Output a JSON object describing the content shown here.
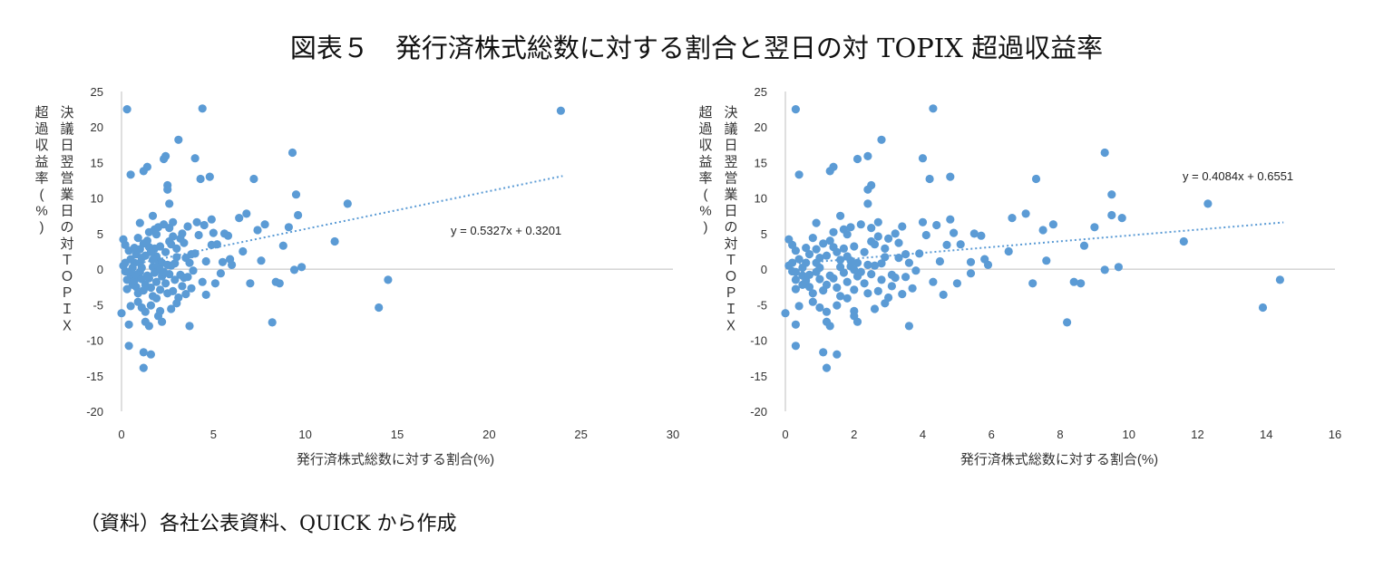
{
  "figure_title": "図表５　発行済株式総数に対する割合と翌日の対 TOPIX 超過収益率",
  "source_note": "（資料）各社公表資料、QUICK から作成",
  "colors": {
    "points": "#5b9bd5",
    "axis": "#bfbfbf",
    "trend": "#5b9bd5",
    "text": "#333333"
  },
  "chart_data": [
    {
      "type": "scatter",
      "title": "",
      "xlabel": "発行済株式総数に対する割合(%)",
      "ylabel_lines": [
        "決議日翌営業日の対ＴＯＰＩＸ",
        "超過収益率(%)"
      ],
      "xlim": [
        0,
        30
      ],
      "ylim": [
        -20,
        25
      ],
      "xticks": [
        0,
        5,
        10,
        15,
        20,
        25,
        30
      ],
      "yticks": [
        -20,
        -15,
        -10,
        -5,
        0,
        5,
        10,
        15,
        20,
        25
      ],
      "grid": false,
      "trendline": {
        "slope": 0.5327,
        "intercept": 0.3201,
        "x_range": [
          0,
          24
        ],
        "label": "y = 0.5327x + 0.3201"
      },
      "points": [
        [
          0.1,
          4.2
        ],
        [
          0.3,
          22.5
        ],
        [
          0.5,
          13.3
        ],
        [
          0.2,
          3.4
        ],
        [
          0.4,
          2.6
        ],
        [
          0.1,
          0.5
        ],
        [
          0.2,
          -0.3
        ],
        [
          0.3,
          -1.5
        ],
        [
          0.0,
          -6.2
        ],
        [
          0.4,
          -7.8
        ],
        [
          0.4,
          -10.8
        ],
        [
          0.6,
          -0.9
        ],
        [
          0.7,
          0.9
        ],
        [
          0.8,
          -2.5
        ],
        [
          0.9,
          4.4
        ],
        [
          1.0,
          6.5
        ],
        [
          1.1,
          -5.4
        ],
        [
          1.2,
          -11.7
        ],
        [
          1.2,
          -13.9
        ],
        [
          1.3,
          -6.0
        ],
        [
          1.4,
          14.4
        ],
        [
          1.2,
          13.8
        ],
        [
          1.5,
          -8.0
        ],
        [
          1.6,
          -12.0
        ],
        [
          1.7,
          7.5
        ],
        [
          1.8,
          2.9
        ],
        [
          1.9,
          -1.8
        ],
        [
          2.0,
          0.4
        ],
        [
          2.1,
          -5.9
        ],
        [
          2.2,
          -7.4
        ],
        [
          2.3,
          15.5
        ],
        [
          2.4,
          15.9
        ],
        [
          2.5,
          11.8
        ],
        [
          2.5,
          11.2
        ],
        [
          2.6,
          9.2
        ],
        [
          2.6,
          5.8
        ],
        [
          2.7,
          3.5
        ],
        [
          2.8,
          -3.1
        ],
        [
          3.0,
          -4.8
        ],
        [
          3.1,
          18.2
        ],
        [
          3.2,
          4.3
        ],
        [
          3.4,
          -1.2
        ],
        [
          3.6,
          6.0
        ],
        [
          3.7,
          -8.0
        ],
        [
          3.8,
          2.1
        ],
        [
          4.0,
          15.6
        ],
        [
          4.1,
          6.6
        ],
        [
          4.3,
          12.7
        ],
        [
          4.4,
          22.6
        ],
        [
          4.5,
          6.2
        ],
        [
          4.6,
          -3.6
        ],
        [
          4.8,
          13.0
        ],
        [
          4.9,
          3.4
        ],
        [
          5.0,
          5.1
        ],
        [
          5.2,
          3.5
        ],
        [
          5.4,
          -0.6
        ],
        [
          5.6,
          5.0
        ],
        [
          5.9,
          1.4
        ],
        [
          6.0,
          0.6
        ],
        [
          6.4,
          7.2
        ],
        [
          6.8,
          7.8
        ],
        [
          7.0,
          -2.0
        ],
        [
          7.2,
          12.7
        ],
        [
          7.4,
          5.5
        ],
        [
          7.6,
          1.2
        ],
        [
          7.8,
          6.3
        ],
        [
          8.2,
          -7.5
        ],
        [
          8.4,
          -1.8
        ],
        [
          8.6,
          -2.0
        ],
        [
          8.8,
          3.3
        ],
        [
          9.1,
          5.9
        ],
        [
          9.3,
          16.4
        ],
        [
          9.4,
          -0.1
        ],
        [
          9.5,
          10.5
        ],
        [
          9.6,
          7.6
        ],
        [
          9.8,
          0.3
        ],
        [
          11.6,
          3.9
        ],
        [
          12.3,
          9.2
        ],
        [
          14.0,
          -5.4
        ],
        [
          14.5,
          -1.5
        ],
        [
          23.9,
          22.3
        ],
        [
          0.6,
          -2.2
        ],
        [
          0.9,
          -3.4
        ],
        [
          1.0,
          -0.4
        ],
        [
          1.3,
          1.9
        ],
        [
          1.5,
          3.1
        ],
        [
          1.6,
          -2.6
        ],
        [
          1.8,
          5.6
        ],
        [
          2.0,
          1.2
        ],
        [
          2.2,
          -1.0
        ],
        [
          2.4,
          2.4
        ],
        [
          2.6,
          -0.7
        ],
        [
          2.9,
          0.8
        ],
        [
          3.3,
          -2.4
        ],
        [
          3.5,
          1.6
        ],
        [
          0.5,
          1.4
        ],
        [
          0.7,
          -1.6
        ],
        [
          0.8,
          2.1
        ],
        [
          1.1,
          0.2
        ],
        [
          1.4,
          -0.9
        ],
        [
          1.7,
          -3.8
        ],
        [
          1.9,
          4.9
        ],
        [
          2.1,
          -2.9
        ],
        [
          2.3,
          6.3
        ],
        [
          2.7,
          0.5
        ],
        [
          3.0,
          2.9
        ],
        [
          3.3,
          5.0
        ],
        [
          3.6,
          -1.1
        ],
        [
          3.9,
          -0.2
        ],
        [
          4.2,
          4.8
        ],
        [
          4.6,
          1.1
        ],
        [
          5.1,
          -2.0
        ],
        [
          5.8,
          4.7
        ],
        [
          6.6,
          2.5
        ],
        [
          0.2,
          0.9
        ],
        [
          0.9,
          -4.6
        ],
        [
          1.3,
          -7.4
        ],
        [
          1.6,
          -5.1
        ],
        [
          2.0,
          -6.6
        ],
        [
          2.5,
          -3.4
        ],
        [
          3.1,
          -4.0
        ],
        [
          3.8,
          -2.7
        ],
        [
          4.4,
          -1.8
        ],
        [
          1.2,
          3.6
        ],
        [
          1.5,
          5.2
        ],
        [
          1.7,
          0.3
        ],
        [
          1.9,
          1.8
        ],
        [
          2.1,
          3.2
        ],
        [
          2.3,
          -0.4
        ],
        [
          2.8,
          6.6
        ],
        [
          3.2,
          -0.8
        ],
        [
          3.7,
          0.9
        ],
        [
          4.0,
          2.2
        ],
        [
          0.3,
          -2.8
        ],
        [
          0.6,
          0.2
        ],
        [
          0.8,
          -0.8
        ],
        [
          1.0,
          2.8
        ],
        [
          1.1,
          -1.4
        ],
        [
          1.4,
          4.0
        ],
        [
          1.8,
          -0.5
        ],
        [
          2.2,
          0.9
        ],
        [
          2.4,
          -2.0
        ],
        [
          2.6,
          3.9
        ],
        [
          2.9,
          -1.5
        ],
        [
          3.4,
          3.7
        ],
        [
          4.9,
          7.0
        ],
        [
          5.5,
          1.0
        ],
        [
          1.6,
          2.4
        ],
        [
          2.0,
          5.9
        ],
        [
          2.8,
          4.6
        ],
        [
          0.5,
          -5.2
        ],
        [
          1.2,
          -3.0
        ],
        [
          1.9,
          -4.1
        ],
        [
          2.7,
          -5.6
        ],
        [
          3.5,
          -3.5
        ],
        [
          0.7,
          3.0
        ],
        [
          1.0,
          0.9
        ],
        [
          1.3,
          -2.2
        ],
        [
          1.7,
          1.3
        ],
        [
          2.1,
          -0.1
        ],
        [
          2.5,
          0.6
        ],
        [
          3.0,
          1.7
        ],
        [
          0.4,
          -0.4
        ],
        [
          1.1,
          1.6
        ],
        [
          1.5,
          -1.3
        ]
      ]
    },
    {
      "type": "scatter",
      "title": "",
      "xlabel": "発行済株式総数に対する割合(%)",
      "ylabel_lines": [
        "決議日翌営業日の対ＴＯＰＩＸ",
        "超過収益率(%)"
      ],
      "xlim": [
        0,
        16
      ],
      "ylim": [
        -20,
        25
      ],
      "xticks": [
        0,
        2,
        4,
        6,
        8,
        10,
        12,
        14,
        16
      ],
      "yticks": [
        -20,
        -15,
        -10,
        -5,
        0,
        5,
        10,
        15,
        20,
        25
      ],
      "grid": false,
      "trendline": {
        "slope": 0.4084,
        "intercept": 0.6551,
        "x_range": [
          0,
          14.5
        ],
        "label": "y = 0.4084x + 0.6551"
      },
      "points": [
        [
          0.1,
          4.2
        ],
        [
          0.3,
          22.5
        ],
        [
          0.4,
          13.3
        ],
        [
          0.2,
          3.4
        ],
        [
          0.3,
          2.6
        ],
        [
          0.1,
          0.5
        ],
        [
          0.2,
          -0.3
        ],
        [
          0.3,
          -1.5
        ],
        [
          0.0,
          -6.2
        ],
        [
          0.3,
          -7.8
        ],
        [
          0.3,
          -10.8
        ],
        [
          0.5,
          -0.9
        ],
        [
          0.6,
          0.9
        ],
        [
          0.7,
          -2.5
        ],
        [
          0.8,
          4.4
        ],
        [
          0.9,
          6.5
        ],
        [
          1.0,
          -5.4
        ],
        [
          1.1,
          -11.7
        ],
        [
          1.2,
          -13.9
        ],
        [
          1.2,
          -6.0
        ],
        [
          1.4,
          14.4
        ],
        [
          1.3,
          13.8
        ],
        [
          1.3,
          -8.0
        ],
        [
          1.5,
          -12.0
        ],
        [
          1.6,
          7.5
        ],
        [
          1.7,
          2.9
        ],
        [
          1.8,
          -1.8
        ],
        [
          1.9,
          0.4
        ],
        [
          2.0,
          -5.9
        ],
        [
          2.1,
          -7.4
        ],
        [
          2.1,
          15.5
        ],
        [
          2.4,
          15.9
        ],
        [
          2.5,
          11.8
        ],
        [
          2.4,
          11.2
        ],
        [
          2.4,
          9.2
        ],
        [
          2.5,
          5.8
        ],
        [
          2.6,
          3.5
        ],
        [
          2.7,
          -3.1
        ],
        [
          2.9,
          -4.8
        ],
        [
          2.8,
          18.2
        ],
        [
          3.0,
          4.3
        ],
        [
          3.2,
          -1.2
        ],
        [
          3.4,
          6.0
        ],
        [
          3.6,
          -8.0
        ],
        [
          3.5,
          2.1
        ],
        [
          4.0,
          15.6
        ],
        [
          4.0,
          6.6
        ],
        [
          4.2,
          12.7
        ],
        [
          4.3,
          22.6
        ],
        [
          4.4,
          6.2
        ],
        [
          4.6,
          -3.6
        ],
        [
          4.8,
          13.0
        ],
        [
          4.7,
          3.4
        ],
        [
          4.9,
          5.1
        ],
        [
          5.1,
          3.5
        ],
        [
          5.4,
          -0.6
        ],
        [
          5.5,
          5.0
        ],
        [
          5.8,
          1.4
        ],
        [
          5.9,
          0.6
        ],
        [
          6.6,
          7.2
        ],
        [
          7.0,
          7.8
        ],
        [
          7.2,
          -2.0
        ],
        [
          7.3,
          12.7
        ],
        [
          7.5,
          5.5
        ],
        [
          7.6,
          1.2
        ],
        [
          7.8,
          6.3
        ],
        [
          8.2,
          -7.5
        ],
        [
          8.4,
          -1.8
        ],
        [
          8.6,
          -2.0
        ],
        [
          8.7,
          3.3
        ],
        [
          9.0,
          5.9
        ],
        [
          9.3,
          16.4
        ],
        [
          9.3,
          -0.1
        ],
        [
          9.5,
          10.5
        ],
        [
          9.5,
          7.6
        ],
        [
          9.7,
          0.3
        ],
        [
          11.6,
          3.9
        ],
        [
          12.3,
          9.2
        ],
        [
          13.9,
          -5.4
        ],
        [
          14.4,
          -1.5
        ],
        [
          9.8,
          7.2
        ],
        [
          0.5,
          -2.2
        ],
        [
          0.8,
          -3.4
        ],
        [
          0.9,
          -0.4
        ],
        [
          1.2,
          1.9
        ],
        [
          1.4,
          3.1
        ],
        [
          1.5,
          -2.6
        ],
        [
          1.7,
          5.6
        ],
        [
          1.9,
          1.2
        ],
        [
          2.1,
          -1.0
        ],
        [
          2.3,
          2.4
        ],
        [
          2.5,
          -0.7
        ],
        [
          2.8,
          0.8
        ],
        [
          3.1,
          -2.4
        ],
        [
          3.3,
          1.6
        ],
        [
          0.4,
          1.4
        ],
        [
          0.6,
          -1.6
        ],
        [
          0.7,
          2.1
        ],
        [
          1.0,
          0.2
        ],
        [
          1.3,
          -0.9
        ],
        [
          1.6,
          -3.8
        ],
        [
          1.8,
          4.9
        ],
        [
          2.0,
          -2.9
        ],
        [
          2.2,
          6.3
        ],
        [
          2.6,
          0.5
        ],
        [
          2.9,
          2.9
        ],
        [
          3.2,
          5.0
        ],
        [
          3.5,
          -1.1
        ],
        [
          3.8,
          -0.2
        ],
        [
          4.1,
          4.8
        ],
        [
          4.5,
          1.1
        ],
        [
          5.0,
          -2.0
        ],
        [
          5.7,
          4.7
        ],
        [
          6.5,
          2.5
        ],
        [
          0.2,
          0.9
        ],
        [
          0.8,
          -4.6
        ],
        [
          1.2,
          -7.4
        ],
        [
          1.5,
          -5.1
        ],
        [
          2.0,
          -6.6
        ],
        [
          2.4,
          -3.4
        ],
        [
          3.0,
          -4.0
        ],
        [
          3.7,
          -2.7
        ],
        [
          4.3,
          -1.8
        ],
        [
          1.1,
          3.6
        ],
        [
          1.4,
          5.2
        ],
        [
          1.6,
          0.3
        ],
        [
          1.8,
          1.8
        ],
        [
          2.0,
          3.2
        ],
        [
          2.2,
          -0.4
        ],
        [
          2.7,
          6.6
        ],
        [
          3.1,
          -0.8
        ],
        [
          3.6,
          0.9
        ],
        [
          3.9,
          2.2
        ],
        [
          0.3,
          -2.8
        ],
        [
          0.5,
          0.2
        ],
        [
          0.7,
          -0.8
        ],
        [
          0.9,
          2.8
        ],
        [
          1.0,
          -1.4
        ],
        [
          1.3,
          4.0
        ],
        [
          1.7,
          -0.5
        ],
        [
          2.1,
          0.9
        ],
        [
          2.3,
          -2.0
        ],
        [
          2.5,
          3.9
        ],
        [
          2.8,
          -1.5
        ],
        [
          3.3,
          3.7
        ],
        [
          4.8,
          7.0
        ],
        [
          5.4,
          1.0
        ],
        [
          1.5,
          2.4
        ],
        [
          1.9,
          5.9
        ],
        [
          2.7,
          4.6
        ],
        [
          0.4,
          -5.2
        ],
        [
          1.1,
          -3.0
        ],
        [
          1.8,
          -4.1
        ],
        [
          2.6,
          -5.6
        ],
        [
          3.4,
          -3.5
        ],
        [
          0.6,
          3.0
        ],
        [
          0.9,
          0.9
        ],
        [
          1.2,
          -2.2
        ],
        [
          1.6,
          1.3
        ],
        [
          2.0,
          -0.1
        ],
        [
          2.4,
          0.6
        ],
        [
          2.9,
          1.7
        ],
        [
          0.3,
          -0.4
        ],
        [
          1.0,
          1.6
        ],
        [
          1.4,
          -1.3
        ]
      ]
    }
  ]
}
